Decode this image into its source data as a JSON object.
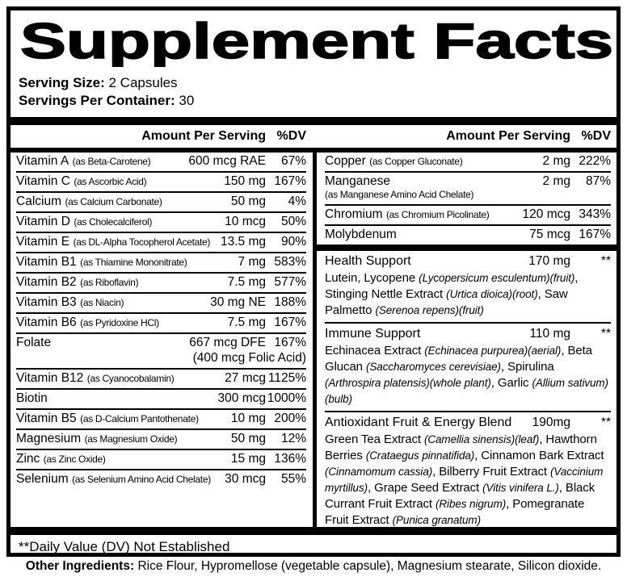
{
  "title": "Supplement Facts",
  "serving": {
    "size_label": "Serving Size:",
    "size_value": "2 Capsules",
    "container_label": "Servings Per Container:",
    "container_value": "30"
  },
  "table_headers": {
    "amount": "Amount Per Serving",
    "dv": "%DV"
  },
  "left_rows": [
    {
      "name": "Vitamin A",
      "form": "(as Beta-Carotene)",
      "amount": "600 mcg RAE",
      "dv": "67%"
    },
    {
      "name": "Vitamin C",
      "form": "(as Ascorbic Acid)",
      "amount": "150 mg",
      "dv": "167%"
    },
    {
      "name": "Calcium",
      "form": "(as Calcium Carbonate)",
      "amount": "50 mg",
      "dv": "4%"
    },
    {
      "name": "Vitamin D",
      "form": "(as Cholecalciferol)",
      "amount": "10 mcg",
      "dv": "50%"
    },
    {
      "name": "Vitamin E",
      "form": "(as DL-Alpha Tocopherol Acetate)",
      "amount": "13.5 mg",
      "dv": "90%"
    },
    {
      "name": "Vitamin B1",
      "form": "(as Thiamine Mononitrate)",
      "amount": "7 mg",
      "dv": "583%"
    },
    {
      "name": "Vitamin B2",
      "form": "(as Riboflavin)",
      "amount": "7.5 mg",
      "dv": "577%"
    },
    {
      "name": "Vitamin B3",
      "form": "(as Niacin)",
      "amount": "30 mg NE",
      "dv": "188%"
    },
    {
      "name": "Vitamin B6",
      "form": "(as Pyridoxine HCl)",
      "amount": "7.5 mg",
      "dv": "167%"
    },
    {
      "name": "Folate",
      "form": "",
      "amount": "667 mcg DFE",
      "amount2": "(400 mcg Folic Acid)",
      "dv": "167%"
    },
    {
      "name": "Vitamin B12",
      "form": "(as Cyanocobalamin)",
      "amount": "27 mcg",
      "dv": "1125%"
    },
    {
      "name": "Biotin",
      "form": "",
      "amount": "300 mcg",
      "dv": "1000%"
    },
    {
      "name": "Vitamin B5",
      "form": "(as D-Calcium Pantothenate)",
      "amount": "10 mg",
      "dv": "200%"
    },
    {
      "name": "Magnesium",
      "form": "(as Magnesium Oxide)",
      "amount": "50 mg",
      "dv": "12%"
    },
    {
      "name": "Zinc",
      "form": "(as Zinc Oxide)",
      "amount": "15 mg",
      "dv": "136%"
    },
    {
      "name": "Selenium",
      "form": "(as Selenium Amino Acid Chelate)",
      "amount": "30 mcg",
      "dv": "55%"
    }
  ],
  "right_rows": [
    {
      "name": "Copper",
      "form": "(as Copper Gluconate)",
      "amount": "2 mg",
      "dv": "222%"
    },
    {
      "name": "Manganese",
      "form": "",
      "form_line2": "(as Manganese Amino Acid Chelate)",
      "amount": "2 mg",
      "dv": "87%"
    },
    {
      "name": "Chromium",
      "form": "(as Chromium Picolinate)",
      "amount": "120 mcg",
      "dv": "343%"
    },
    {
      "name": "Molybdenum",
      "form": "",
      "amount": "75 mcg",
      "dv": "167%"
    }
  ],
  "blends": [
    {
      "name": "Health Support",
      "amount": "170 mg",
      "dv": "**",
      "description": [
        {
          "t": "Lutein, Lycopene "
        },
        {
          "t": "(Lycopersicum esculentum)(fruit)",
          "i": true
        },
        {
          "t": ", Stinging Nettle Extract "
        },
        {
          "t": "(Urtica dioica)(root)",
          "i": true
        },
        {
          "t": ", Saw Palmetto "
        },
        {
          "t": "(Serenoa repens)(fruit)",
          "i": true
        }
      ]
    },
    {
      "name": "Immune Support",
      "amount": "110 mg",
      "dv": "**",
      "description": [
        {
          "t": "Echinacea Extract "
        },
        {
          "t": "(Echinacea purpurea)(aerial)",
          "i": true
        },
        {
          "t": ", Beta Glucan "
        },
        {
          "t": "(Saccharomyces cerevisiae)",
          "i": true
        },
        {
          "t": ", Spirulina "
        },
        {
          "t": "(Arthrospira platensis)(whole plant)",
          "i": true
        },
        {
          "t": ", Garlic "
        },
        {
          "t": "(Allium sativum)(bulb)",
          "i": true
        }
      ]
    },
    {
      "name": "Antioxidant Fruit & Energy Blend",
      "amount": "190mg",
      "dv": "**",
      "description": [
        {
          "t": "Green Tea Extract "
        },
        {
          "t": "(Camellia sinensis)(leaf)",
          "i": true
        },
        {
          "t": ", Hawthorn Berries "
        },
        {
          "t": "(Crataegus pinnatifida)",
          "i": true
        },
        {
          "t": ", Cinnamon Bark Extract "
        },
        {
          "t": "(Cinnamomum cassia)",
          "i": true
        },
        {
          "t": ", Bilberry Fruit Extract "
        },
        {
          "t": "(Vaccinium myrtillus)",
          "i": true
        },
        {
          "t": ", Grape Seed Extract "
        },
        {
          "t": "(Vitis vinifera L.)",
          "i": true
        },
        {
          "t": ", Black Currant Fruit Extract "
        },
        {
          "t": "(Ribes nigrum)",
          "i": true
        },
        {
          "t": ", Pomegranate Fruit Extract "
        },
        {
          "t": "(Punica granatum)",
          "i": true
        }
      ]
    }
  ],
  "footnote": "**Daily Value (DV) Not Established",
  "other_ingredients": {
    "label": "Other Ingredients:",
    "text": "Rice Flour, Hypromellose (vegetable capsule), Magnesium stearate, Silicon dioxide."
  },
  "colors": {
    "ink": "#000000",
    "background": "#ffffff"
  }
}
